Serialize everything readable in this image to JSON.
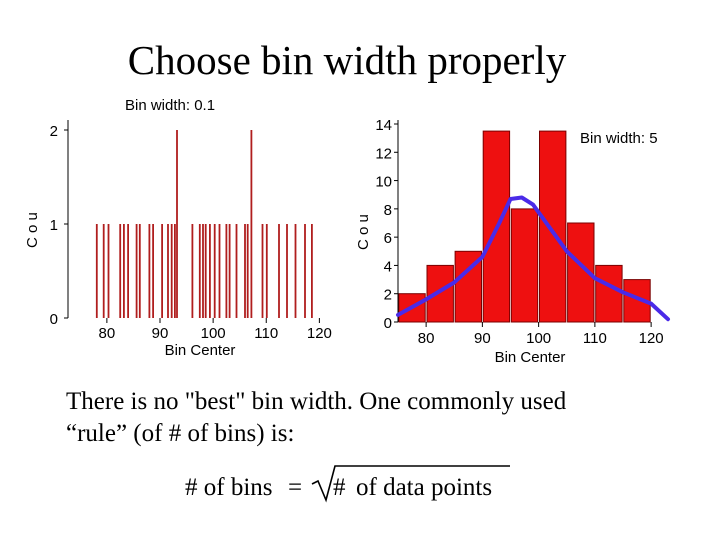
{
  "title": "Choose bin width properly",
  "body_text": {
    "line1": "There is no \"best\" bin width. One commonly used",
    "line2": "“rule” (of # of bins) is:"
  },
  "formula": {
    "lhs": "# of bins",
    "equals": "=",
    "hash": "#",
    "rhs_words": "of data points"
  },
  "chart_data": [
    {
      "type": "bar",
      "annotation": "Bin width: 0.1",
      "xlabel": "Bin Center",
      "ylabel_fragment": "C o u",
      "xlim": [
        74,
        122
      ],
      "ylim": [
        0,
        2
      ],
      "x_ticks": [
        "80",
        "90",
        "100",
        "110",
        "120"
      ],
      "y_ticks": [
        "0",
        "1",
        "2"
      ],
      "bar_color": "#b01e1e",
      "x": [
        78.1,
        79.4,
        80.3,
        82.5,
        83.2,
        84.0,
        85.6,
        86.2,
        88.0,
        88.7,
        90.4,
        91.5,
        92.2,
        92.8,
        93.2,
        96.1,
        97.5,
        98.1,
        98.6,
        99.4,
        100.3,
        101.2,
        102.5,
        103.1,
        104.4,
        106.0,
        106.5,
        107.2,
        109.3,
        110.1,
        112.4,
        113.9,
        115.5,
        117.3,
        118.6
      ],
      "values": [
        1,
        1,
        1,
        1,
        1,
        1,
        1,
        1,
        1,
        1,
        1,
        1,
        1,
        1,
        2,
        1,
        1,
        1,
        1,
        1,
        1,
        1,
        1,
        1,
        1,
        1,
        1,
        2,
        1,
        1,
        1,
        1,
        1,
        1,
        1
      ]
    },
    {
      "type": "bar",
      "annotation": "Bin width: 5",
      "xlabel": "Bin Center",
      "ylabel_fragment": "C o u",
      "xlim": [
        75,
        123
      ],
      "ylim": [
        0,
        14
      ],
      "x_ticks": [
        "80",
        "90",
        "100",
        "110",
        "120"
      ],
      "y_ticks": [
        "0",
        "2",
        "4",
        "6",
        "8",
        "10",
        "12",
        "14"
      ],
      "bar_color": "#ee1010",
      "curve_color": "#4a2ae8",
      "categories": [
        "77.5",
        "82.5",
        "87.5",
        "92.5",
        "97.5",
        "102.5",
        "107.5",
        "112.5",
        "117.5"
      ],
      "x": [
        77.5,
        82.5,
        87.5,
        92.5,
        97.5,
        102.5,
        107.5,
        112.5,
        117.5
      ],
      "values": [
        2,
        4,
        5,
        13.5,
        8,
        13.5,
        7,
        4,
        3
      ],
      "curve": {
        "x": [
          75,
          80,
          85,
          90,
          93,
          95,
          97,
          99,
          101,
          105,
          110,
          115,
          120,
          123
        ],
        "y": [
          0.5,
          1.6,
          2.8,
          4.6,
          7.0,
          8.7,
          8.8,
          8.3,
          7.2,
          5.0,
          3.1,
          2.1,
          1.3,
          0.2
        ]
      }
    }
  ]
}
